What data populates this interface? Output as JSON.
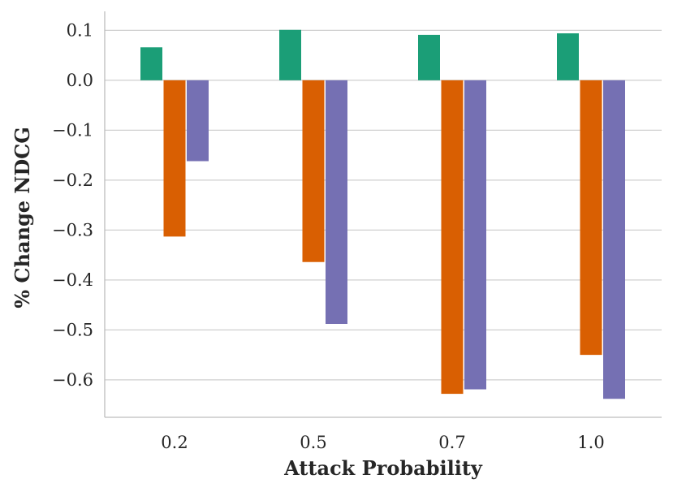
{
  "chart_data": {
    "type": "bar",
    "title": "",
    "xlabel": "Attack Probability",
    "ylabel": "% Change NDCG",
    "categories": [
      "0.2",
      "0.5",
      "0.7",
      "1.0"
    ],
    "series": [
      {
        "name": "series-1",
        "color": "#1b9e77",
        "values": [
          0.066,
          0.101,
          0.091,
          0.094
        ]
      },
      {
        "name": "series-2",
        "color": "#d95f02",
        "values": [
          -0.313,
          -0.364,
          -0.628,
          -0.55
        ]
      },
      {
        "name": "series-3",
        "color": "#7570b3",
        "values": [
          -0.162,
          -0.488,
          -0.619,
          -0.638
        ]
      }
    ],
    "yticks": [
      0.1,
      0.0,
      -0.1,
      -0.2,
      -0.3,
      -0.4,
      -0.5,
      -0.6
    ],
    "ytick_labels": [
      "0.1",
      "0.0",
      "−0.1",
      "−0.2",
      "−0.3",
      "−0.4",
      "−0.5",
      "−0.6"
    ],
    "ylim": [
      -0.675,
      0.138
    ],
    "grid": true,
    "legend": "none"
  }
}
